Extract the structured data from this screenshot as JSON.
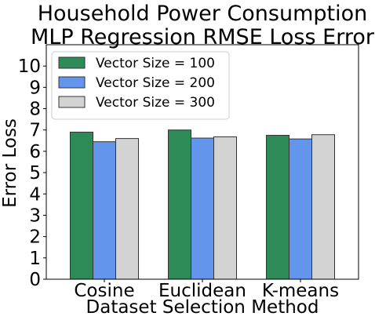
{
  "chart_data": {
    "type": "bar",
    "title_lines": [
      "Household Power Consumption",
      "MLP Regression RMSE Loss Error"
    ],
    "xlabel": "Dataset Selection Method",
    "ylabel": "Error Loss",
    "categories": [
      "Cosine",
      "Euclidean",
      "K-means"
    ],
    "series": [
      {
        "name": "Vector Size = 100",
        "values": [
          6.9,
          7.0,
          6.75
        ],
        "color": "#2e8b57"
      },
      {
        "name": "Vector Size = 200",
        "values": [
          6.45,
          6.62,
          6.58
        ],
        "color": "#6495ed"
      },
      {
        "name": "Vector Size = 300",
        "values": [
          6.6,
          6.68,
          6.78
        ],
        "color": "#d3d3d3"
      }
    ],
    "ylim": [
      0,
      11
    ],
    "yticks": [
      "0",
      "1",
      "2",
      "3",
      "4",
      "5",
      "6",
      "7",
      "8",
      "9",
      "10"
    ],
    "grid": false,
    "legend_position": "top-left"
  }
}
